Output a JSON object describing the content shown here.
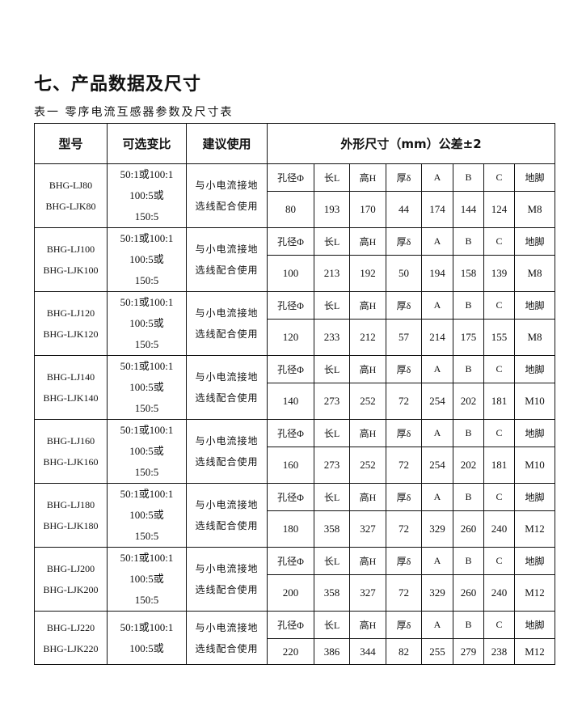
{
  "title": "七、产品数据及尺寸",
  "caption": "表一 零序电流互感器参数及尺寸表",
  "headers": {
    "model": "型号",
    "ratio": "可选变比",
    "use": "建议使用",
    "dims": "外形尺寸（mm）公差±2"
  },
  "dim_labels": [
    "孔径Φ",
    "长L",
    "高H",
    "厚δ",
    "A",
    "B",
    "C",
    "地脚"
  ],
  "rows": [
    {
      "models": [
        "BHG-LJ80",
        "BHG-LJK80"
      ],
      "ratios": [
        "50:1或100:1",
        "100:5或",
        "150:5"
      ],
      "use": [
        "与小电流接地",
        "选线配合使用"
      ],
      "values": [
        "80",
        "193",
        "170",
        "44",
        "174",
        "144",
        "124",
        "M8"
      ]
    },
    {
      "models": [
        "BHG-LJ100",
        "BHG-LJK100"
      ],
      "ratios": [
        "50:1或100:1",
        "100:5或",
        "150:5"
      ],
      "use": [
        "与小电流接地",
        "选线配合使用"
      ],
      "values": [
        "100",
        "213",
        "192",
        "50",
        "194",
        "158",
        "139",
        "M8"
      ]
    },
    {
      "models": [
        "BHG-LJ120",
        "BHG-LJK120"
      ],
      "ratios": [
        "50:1或100:1",
        "100:5或",
        "150:5"
      ],
      "use": [
        "与小电流接地",
        "选线配合使用"
      ],
      "values": [
        "120",
        "233",
        "212",
        "57",
        "214",
        "175",
        "155",
        "M8"
      ]
    },
    {
      "models": [
        "BHG-LJ140",
        "BHG-LJK140"
      ],
      "ratios": [
        "50:1或100:1",
        "100:5或",
        "150:5"
      ],
      "use": [
        "与小电流接地",
        "选线配合使用"
      ],
      "values": [
        "140",
        "273",
        "252",
        "72",
        "254",
        "202",
        "181",
        "M10"
      ]
    },
    {
      "models": [
        "BHG-LJ160",
        "BHG-LJK160"
      ],
      "ratios": [
        "50:1或100:1",
        "100:5或",
        "150:5"
      ],
      "use": [
        "与小电流接地",
        "选线配合使用"
      ],
      "values": [
        "160",
        "273",
        "252",
        "72",
        "254",
        "202",
        "181",
        "M10"
      ]
    },
    {
      "models": [
        "BHG-LJ180",
        "BHG-LJK180"
      ],
      "ratios": [
        "50:1或100:1",
        "100:5或",
        "150:5"
      ],
      "use": [
        "与小电流接地",
        "选线配合使用"
      ],
      "values": [
        "180",
        "358",
        "327",
        "72",
        "329",
        "260",
        "240",
        "M12"
      ]
    },
    {
      "models": [
        "BHG-LJ200",
        "BHG-LJK200"
      ],
      "ratios": [
        "50:1或100:1",
        "100:5或",
        "150:5"
      ],
      "use": [
        "与小电流接地",
        "选线配合使用"
      ],
      "values": [
        "200",
        "358",
        "327",
        "72",
        "329",
        "260",
        "240",
        "M12"
      ]
    },
    {
      "models": [
        "BHG-LJ220",
        "BHG-LJK220"
      ],
      "ratios": [
        "50:1或100:1",
        "100:5或"
      ],
      "use": [
        "与小电流接地",
        "选线配合使用"
      ],
      "values": [
        "220",
        "386",
        "344",
        "82",
        "255",
        "279",
        "238",
        "M12"
      ]
    }
  ]
}
